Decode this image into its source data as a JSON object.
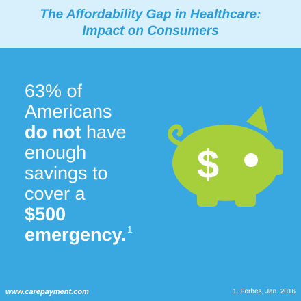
{
  "header": {
    "title_line1": "The Affordability Gap in Healthcare:",
    "title_line2": "Impact on Consumers"
  },
  "message": {
    "line1": "63% of",
    "line2": "Americans",
    "line3_bold": "do not",
    "line3_rest": " have",
    "line4": "enough",
    "line5": "savings to",
    "line6": "cover a",
    "line7_bold": "$500",
    "line8_bold": "emergency.",
    "footnote_marker": "1"
  },
  "illustration": {
    "icon": "piggy-bank-icon",
    "symbol": "$",
    "body_color": "#a6cf3b",
    "eye_color": "#ffffff"
  },
  "footer": {
    "url": "www.carepayment.com",
    "source": "1. Forbes, Jan. 2016"
  }
}
